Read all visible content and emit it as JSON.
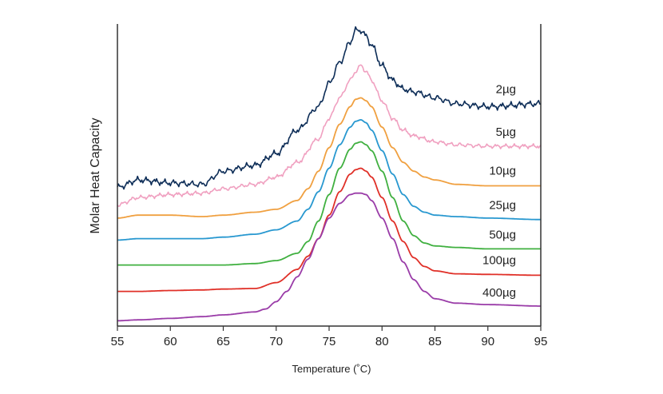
{
  "chart_data": {
    "type": "line",
    "title": "",
    "xlabel": "Temperature (˚C)",
    "ylabel": "Molar Heat Capacity",
    "xlim": [
      55,
      95
    ],
    "x_ticks": [
      "55",
      "60",
      "65",
      "70",
      "75",
      "80",
      "85",
      "90",
      "95"
    ],
    "y_ticks": [],
    "grid": false,
    "legend": "inline-right",
    "series": [
      {
        "name": "2µg",
        "color": "#0d2d57",
        "noisy": true,
        "x": [
          55,
          57,
          60,
          63,
          65,
          68,
          70,
          72,
          74,
          75,
          76,
          77,
          77.5,
          78,
          78.5,
          79,
          80,
          81,
          82,
          83,
          85,
          87,
          90,
          95
        ],
        "y": [
          0.465,
          0.49,
          0.48,
          0.475,
          0.52,
          0.54,
          0.58,
          0.66,
          0.74,
          0.82,
          0.89,
          0.96,
          1.0,
          1.0,
          0.98,
          0.95,
          0.88,
          0.83,
          0.8,
          0.79,
          0.77,
          0.75,
          0.74,
          0.75
        ]
      },
      {
        "name": "5µg",
        "color": "#f0a0c0",
        "noisy": true,
        "x": [
          55,
          57,
          60,
          63,
          65,
          68,
          70,
          72,
          74,
          75,
          76,
          77,
          77.5,
          78,
          78.5,
          79,
          80,
          81,
          82,
          83,
          85,
          87,
          90,
          95
        ],
        "y": [
          0.405,
          0.43,
          0.44,
          0.445,
          0.46,
          0.475,
          0.5,
          0.55,
          0.63,
          0.7,
          0.77,
          0.83,
          0.86,
          0.88,
          0.86,
          0.83,
          0.76,
          0.7,
          0.66,
          0.64,
          0.62,
          0.61,
          0.605,
          0.605
        ]
      },
      {
        "name": "10µg",
        "color": "#f0a040",
        "noisy": false,
        "x": [
          55,
          57,
          60,
          63,
          65,
          68,
          70,
          72,
          73,
          74,
          75,
          76,
          77,
          77.5,
          78,
          78.5,
          79,
          80,
          81,
          82,
          83,
          84,
          85,
          87,
          90,
          95
        ],
        "y": [
          0.36,
          0.37,
          0.37,
          0.365,
          0.37,
          0.38,
          0.39,
          0.42,
          0.46,
          0.52,
          0.6,
          0.68,
          0.74,
          0.765,
          0.77,
          0.76,
          0.74,
          0.67,
          0.6,
          0.55,
          0.52,
          0.5,
          0.49,
          0.475,
          0.47,
          0.47
        ]
      },
      {
        "name": "25µg",
        "color": "#2898d0",
        "noisy": false,
        "x": [
          55,
          57,
          60,
          63,
          65,
          68,
          70,
          72,
          73,
          74,
          75,
          76,
          77,
          77.5,
          78,
          78.5,
          79,
          80,
          81,
          82,
          83,
          84,
          85,
          87,
          90,
          95
        ],
        "y": [
          0.285,
          0.29,
          0.29,
          0.29,
          0.295,
          0.305,
          0.32,
          0.35,
          0.39,
          0.45,
          0.53,
          0.61,
          0.67,
          0.69,
          0.695,
          0.685,
          0.66,
          0.59,
          0.51,
          0.44,
          0.4,
          0.38,
          0.37,
          0.365,
          0.36,
          0.355
        ]
      },
      {
        "name": "50µg",
        "color": "#40b040",
        "noisy": false,
        "x": [
          55,
          57,
          60,
          63,
          65,
          68,
          70,
          72,
          73,
          74,
          75,
          76,
          77,
          77.5,
          78,
          78.5,
          79,
          80,
          81,
          82,
          83,
          84,
          85,
          87,
          90,
          95
        ],
        "y": [
          0.2,
          0.2,
          0.2,
          0.2,
          0.2,
          0.205,
          0.215,
          0.24,
          0.28,
          0.35,
          0.44,
          0.53,
          0.595,
          0.615,
          0.62,
          0.61,
          0.59,
          0.52,
          0.43,
          0.35,
          0.3,
          0.275,
          0.265,
          0.26,
          0.255,
          0.255
        ]
      },
      {
        "name": "100µg",
        "color": "#e03028",
        "noisy": false,
        "x": [
          55,
          57,
          60,
          63,
          65,
          68,
          70,
          72,
          73,
          74,
          75,
          76,
          77,
          77.5,
          78,
          78.5,
          79,
          80,
          81,
          82,
          83,
          84,
          85,
          87,
          90,
          95
        ],
        "y": [
          0.11,
          0.11,
          0.113,
          0.115,
          0.118,
          0.12,
          0.14,
          0.185,
          0.23,
          0.29,
          0.37,
          0.45,
          0.51,
          0.525,
          0.53,
          0.52,
          0.5,
          0.43,
          0.35,
          0.28,
          0.225,
          0.195,
          0.18,
          0.17,
          0.168,
          0.165
        ]
      },
      {
        "name": "400µg",
        "color": "#9a3ca8",
        "noisy": false,
        "x": [
          55,
          57,
          60,
          63,
          65,
          68,
          69,
          70,
          71,
          72,
          73,
          74,
          75,
          76,
          77,
          77.5,
          78,
          78.5,
          79,
          80,
          81,
          82,
          83,
          84,
          85,
          87,
          90,
          95
        ],
        "y": [
          0.01,
          0.013,
          0.018,
          0.024,
          0.03,
          0.04,
          0.05,
          0.075,
          0.11,
          0.16,
          0.22,
          0.29,
          0.36,
          0.41,
          0.44,
          0.445,
          0.445,
          0.44,
          0.42,
          0.36,
          0.29,
          0.21,
          0.15,
          0.11,
          0.085,
          0.07,
          0.065,
          0.06
        ]
      }
    ]
  }
}
